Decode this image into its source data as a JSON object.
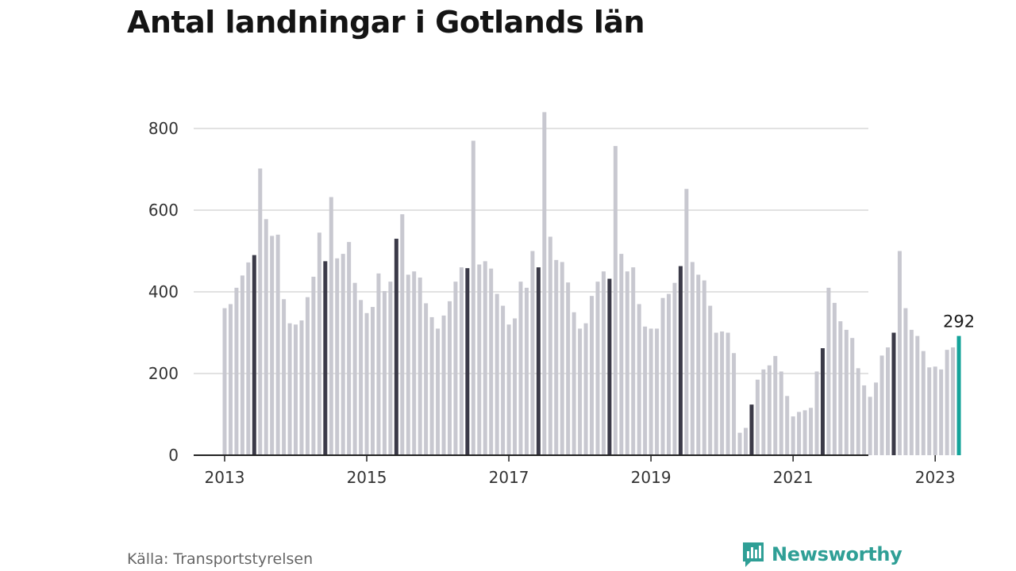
{
  "title": "Antal landningar i Gotlands län",
  "source": "Källa: Transportstyrelsen",
  "brand": {
    "name": "Newsworthy",
    "icon": "newsworthy-logo-icon"
  },
  "colors": {
    "bar": "#c8c8d0",
    "june": "#3b3a48",
    "latest": "#14a39a",
    "grid": "#d9d9d9",
    "axis": "#222222",
    "brand": "#2f9f96"
  },
  "chart_data": {
    "type": "bar",
    "title": "Antal landningar i Gotlands län",
    "xlabel": "",
    "ylabel": "",
    "ylim": [
      0,
      850
    ],
    "yticks": [
      0,
      200,
      400,
      600,
      800
    ],
    "xticks": [
      "2013",
      "2015",
      "2017",
      "2019",
      "2021",
      "2023"
    ],
    "grid": true,
    "start": "2013-01",
    "highlight_month": 6,
    "latest_label": "292",
    "values": [
      360,
      370,
      410,
      440,
      472,
      490,
      702,
      578,
      537,
      540,
      382,
      323,
      320,
      330,
      387,
      437,
      545,
      475,
      632,
      482,
      493,
      522,
      422,
      380,
      348,
      363,
      445,
      402,
      425,
      530,
      590,
      442,
      450,
      435,
      372,
      338,
      310,
      342,
      377,
      425,
      460,
      458,
      770,
      467,
      475,
      457,
      395,
      366,
      320,
      335,
      425,
      410,
      500,
      460,
      840,
      535,
      478,
      473,
      423,
      350,
      310,
      323,
      390,
      425,
      450,
      432,
      757,
      493,
      450,
      460,
      370,
      315,
      310,
      310,
      385,
      395,
      422,
      463,
      652,
      473,
      442,
      428,
      366,
      300,
      303,
      300,
      250,
      55,
      67,
      124,
      185,
      210,
      220,
      243,
      205,
      145,
      95,
      106,
      110,
      116,
      205,
      262,
      410,
      373,
      328,
      307,
      287,
      213,
      171,
      143,
      178,
      244,
      264,
      300,
      500,
      360,
      307,
      292,
      255,
      215,
      217,
      210,
      258,
      264,
      292
    ]
  }
}
